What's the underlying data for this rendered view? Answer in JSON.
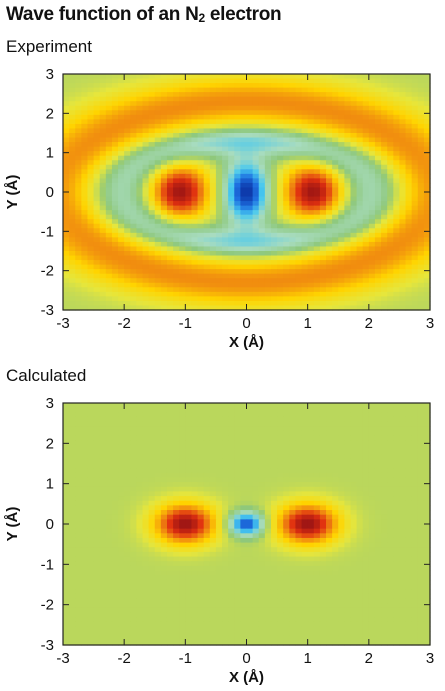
{
  "title": {
    "main": "Wave function of an N",
    "subscript": "2",
    "suffix": " electron"
  },
  "chart_data": [
    {
      "type": "heatmap",
      "panel_label": "Experiment",
      "xlabel": "X (Å)",
      "ylabel": "Y (Å)",
      "xlim": [
        -3,
        3
      ],
      "ylim": [
        -3,
        3
      ],
      "xticks": [
        -3,
        -2,
        -1,
        0,
        1,
        2,
        3
      ],
      "yticks": [
        -3,
        -2,
        -1,
        0,
        1,
        2,
        3
      ],
      "grid": false,
      "colormap": [
        "#0a2fa0",
        "#1e6fe0",
        "#46c8f0",
        "#a8dcc0",
        "#8ec87c",
        "#e6e63c",
        "#ffd400",
        "#f08a10",
        "#e03010",
        "#9a1414"
      ],
      "background_value": 0.0,
      "features": [
        {
          "kind": "lobe",
          "sign": "positive",
          "x": -1.1,
          "y": 0.0,
          "rx": 0.55,
          "ry": 0.8,
          "amplitude": 1.0
        },
        {
          "kind": "lobe",
          "sign": "negative",
          "x": 0.0,
          "y": 0.0,
          "rx": 0.4,
          "ry": 0.85,
          "amplitude": -1.0
        },
        {
          "kind": "lobe",
          "sign": "positive",
          "x": 1.1,
          "y": 0.0,
          "rx": 0.55,
          "ry": 0.8,
          "amplitude": 1.0
        },
        {
          "kind": "ring",
          "sign": "negative",
          "rx": 2.1,
          "ry": 1.3,
          "amplitude": -0.45
        },
        {
          "kind": "ring",
          "sign": "positive",
          "rx": 3.0,
          "ry": 2.3,
          "amplitude": 0.55
        }
      ]
    },
    {
      "type": "heatmap",
      "panel_label": "Calculated",
      "xlabel": "X (Å)",
      "ylabel": "Y (Å)",
      "xlim": [
        -3,
        3
      ],
      "ylim": [
        -3,
        3
      ],
      "xticks": [
        -3,
        -2,
        -1,
        0,
        1,
        2,
        3
      ],
      "yticks": [
        -3,
        -2,
        -1,
        0,
        1,
        2,
        3
      ],
      "grid": false,
      "colormap": [
        "#0a2fa0",
        "#1e6fe0",
        "#46c8f0",
        "#a8dcc0",
        "#8ec87c",
        "#e6e63c",
        "#ffd400",
        "#f08a10",
        "#e03010",
        "#9a1414"
      ],
      "background_value": 0.0,
      "features": [
        {
          "kind": "lobe",
          "sign": "positive",
          "x": -1.0,
          "y": 0.0,
          "rx": 0.55,
          "ry": 0.55,
          "amplitude": 1.0
        },
        {
          "kind": "lobe",
          "sign": "negative",
          "x": 0.0,
          "y": 0.0,
          "rx": 0.32,
          "ry": 0.32,
          "amplitude": -0.9
        },
        {
          "kind": "lobe",
          "sign": "positive",
          "x": 1.0,
          "y": 0.0,
          "rx": 0.55,
          "ry": 0.55,
          "amplitude": 1.0
        }
      ]
    }
  ]
}
